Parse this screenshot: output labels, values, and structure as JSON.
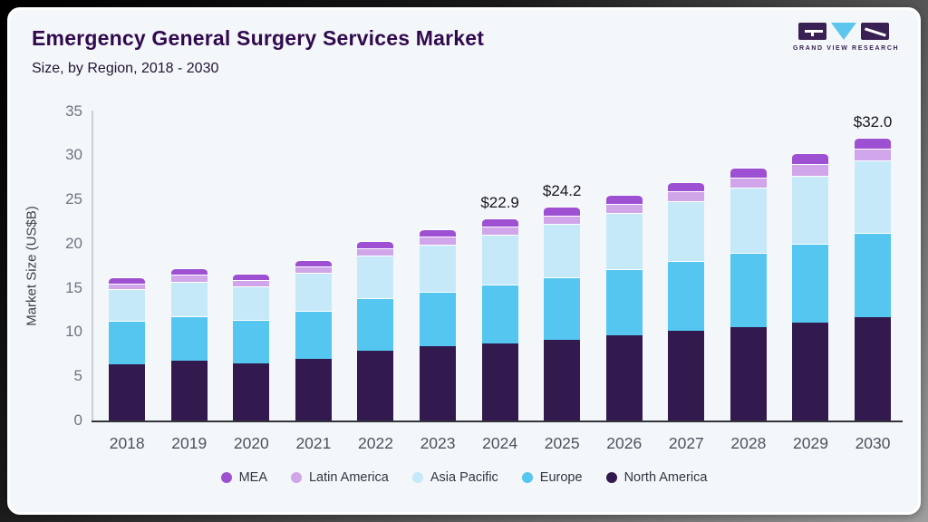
{
  "header": {
    "title": "Emergency General Surgery Services Market",
    "subtitle": "Size, by Region, 2018 - 2030",
    "logo_text": "GRAND VIEW RESEARCH",
    "logo_colors": {
      "block": "#3a2153",
      "triangle": "#5cc6ee"
    }
  },
  "chart_data": {
    "type": "bar",
    "stacked": true,
    "title": "Emergency General Surgery Services Market Size, by Region, 2018 - 2030",
    "xlabel": "",
    "ylabel": "Market Size (US$B)",
    "ylim": [
      0,
      35
    ],
    "yticks": [
      0,
      5,
      10,
      15,
      20,
      25,
      30,
      35
    ],
    "grid": false,
    "legend_position": "bottom",
    "categories": [
      "2018",
      "2019",
      "2020",
      "2021",
      "2022",
      "2023",
      "2024",
      "2025",
      "2026",
      "2027",
      "2028",
      "2029",
      "2030"
    ],
    "series": [
      {
        "name": "North America",
        "color": "#321a4e",
        "values": [
          6.4,
          6.8,
          6.5,
          7.0,
          7.9,
          8.4,
          8.7,
          9.1,
          9.6,
          10.1,
          10.6,
          11.1,
          11.7
        ]
      },
      {
        "name": "Europe",
        "color": "#55c6f0",
        "values": [
          4.9,
          5.0,
          4.9,
          5.4,
          5.9,
          6.2,
          6.7,
          7.1,
          7.5,
          7.9,
          8.4,
          8.9,
          9.5
        ]
      },
      {
        "name": "Asia Pacific",
        "color": "#c6e9f9",
        "values": [
          3.6,
          3.9,
          3.8,
          4.3,
          4.9,
          5.3,
          5.6,
          6.0,
          6.4,
          6.8,
          7.3,
          7.7,
          8.2
        ]
      },
      {
        "name": "Latin America",
        "color": "#d0a5e9",
        "values": [
          0.6,
          0.8,
          0.7,
          0.7,
          0.8,
          0.9,
          0.9,
          1.0,
          1.0,
          1.1,
          1.2,
          1.3,
          1.4
        ]
      },
      {
        "name": "MEA",
        "color": "#9d50d2",
        "values": [
          0.7,
          0.7,
          0.7,
          0.7,
          0.8,
          0.8,
          1.0,
          1.0,
          1.0,
          1.1,
          1.1,
          1.2,
          1.2
        ]
      }
    ],
    "totals": [
      16.2,
      17.2,
      16.6,
      18.1,
      20.3,
      21.6,
      22.9,
      24.2,
      25.5,
      27.0,
      28.6,
      30.2,
      32.0
    ],
    "value_labels": [
      {
        "category": "2024",
        "text": "$22.9"
      },
      {
        "category": "2025",
        "text": "$24.2"
      },
      {
        "category": "2030",
        "text": "$32.0"
      }
    ],
    "legend_order": [
      "MEA",
      "Latin America",
      "Asia Pacific",
      "Europe",
      "North America"
    ]
  }
}
